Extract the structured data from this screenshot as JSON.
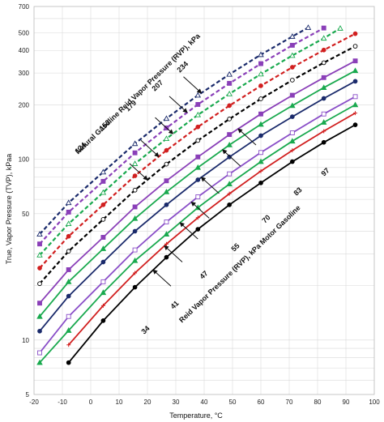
{
  "chart_data": {
    "type": "line",
    "xlabel": "Temperature, °C",
    "ylabel": "True, Vapor Pressure (TVP), kPaa",
    "yscale": "log",
    "xlim": [
      -20,
      100
    ],
    "ylim": [
      5,
      700
    ],
    "xticks": [
      -20,
      -10,
      0,
      10,
      20,
      30,
      40,
      50,
      60,
      70,
      80,
      90,
      100
    ],
    "yticks": [
      5,
      10,
      50,
      100,
      200,
      300,
      400,
      500,
      700
    ],
    "grid": true,
    "groups": [
      {
        "label": "Natural Gasoline Reid Vapor Pressure (RVP), kPa",
        "values": [
          "124",
          "152",
          "179",
          "207",
          "234"
        ]
      },
      {
        "label": "Reid Vapor Pressure (RVP), kPa Motor Gasoline",
        "values": [
          "34",
          "41",
          "47",
          "55",
          "70",
          "83",
          "97"
        ]
      }
    ],
    "series": [
      {
        "rvp": "34",
        "color": "#000000",
        "dash": "solid",
        "marker": "circle-filled",
        "x": [
          -7.8,
          4.4,
          15.6,
          26.7,
          37.8,
          48.9,
          60,
          71.1,
          82.2,
          93.3
        ],
        "y": [
          7.5,
          12.8,
          19.6,
          28.7,
          41,
          56,
          74,
          97,
          124,
          155
        ]
      },
      {
        "rvp": "41",
        "color": "#d11f1f",
        "dash": "solid",
        "marker": "plus",
        "x": [
          -7.8,
          4.4,
          15.6,
          26.7,
          37.8,
          48.9,
          60,
          71.1,
          82.2,
          93.3
        ],
        "y": [
          9.4,
          15.5,
          23.5,
          34,
          47.5,
          64.5,
          86,
          112,
          143,
          180
        ]
      },
      {
        "rvp": "47",
        "color": "#19a94e",
        "dash": "solid",
        "marker": "triangle-filled",
        "x": [
          -18,
          -7.8,
          4.4,
          15.6,
          26.7,
          37.8,
          48.9,
          60,
          71.1,
          82.2,
          93.3
        ],
        "y": [
          7.5,
          11.3,
          18.3,
          27.5,
          38.5,
          54,
          73,
          97,
          126,
          160,
          200
        ]
      },
      {
        "rvp": "55",
        "color": "#8a4fc8",
        "dash": "solid",
        "marker": "square-open",
        "x": [
          -18,
          -7.8,
          4.4,
          15.6,
          26.7,
          37.8,
          48.9,
          60,
          71.1,
          82.2,
          93.3
        ],
        "y": [
          8.5,
          13.5,
          21,
          31.5,
          45,
          62,
          83,
          109,
          140,
          178,
          222
        ]
      },
      {
        "rvp": "70",
        "color": "#1a2a6b",
        "dash": "solid",
        "marker": "circle-filled",
        "x": [
          -18,
          -7.8,
          4.4,
          15.6,
          26.7,
          37.8,
          48.9,
          60,
          71.1,
          82.2,
          93.3
        ],
        "y": [
          11.2,
          17.5,
          27,
          40,
          56,
          77,
          103,
          135,
          172,
          217,
          270
        ]
      },
      {
        "rvp": "83",
        "color": "#19a94e",
        "dash": "solid",
        "marker": "triangle-filled",
        "x": [
          -18,
          -7.8,
          4.4,
          15.6,
          26.7,
          37.8,
          48.9,
          60,
          71.1,
          82.2,
          93.3
        ],
        "y": [
          13.5,
          21,
          32,
          47,
          66,
          90,
          120,
          156,
          198,
          249,
          309
        ]
      },
      {
        "rvp": "97",
        "color": "#8a3fb8",
        "dash": "solid",
        "marker": "square-filled",
        "x": [
          -18,
          -7.8,
          4.4,
          15.6,
          26.7,
          37.8,
          48.9,
          60,
          71.1,
          82.2,
          93.3
        ],
        "y": [
          16,
          24.5,
          37,
          54.5,
          76,
          103,
          137,
          178,
          226,
          283,
          350
        ]
      },
      {
        "rvp": "124",
        "color": "#000000",
        "dash": "dashed",
        "marker": "circle-open",
        "x": [
          -18,
          -7.8,
          4.4,
          15.6,
          26.7,
          37.8,
          48.9,
          60,
          71.1,
          82.2,
          93.3
        ],
        "y": [
          20.5,
          31,
          46.5,
          67.5,
          94,
          127,
          167,
          216,
          274,
          342,
          422
        ]
      },
      {
        "rvp": "152",
        "color": "#d11f1f",
        "dash": "dashed",
        "marker": "circle-filled",
        "x": [
          -18,
          -7.8,
          4.4,
          15.6,
          26.7,
          37.8,
          48.9,
          60,
          71.1,
          82.2,
          93.3
        ],
        "y": [
          25,
          37.5,
          56,
          81,
          112,
          151,
          198,
          255,
          323,
          402,
          495
        ]
      },
      {
        "rvp": "179",
        "color": "#19a94e",
        "dash": "dashed",
        "marker": "triangle-open",
        "x": [
          -18,
          -7.8,
          4.4,
          15.6,
          26.7,
          37.8,
          48.9,
          60,
          71.1,
          82.2,
          88
        ],
        "y": [
          29.5,
          44,
          65.5,
          94.5,
          130,
          176,
          230,
          296,
          375,
          467,
          530
        ]
      },
      {
        "rvp": "207",
        "color": "#8a3fb8",
        "dash": "dashed",
        "marker": "square-filled",
        "x": [
          -18,
          -7.8,
          4.4,
          15.6,
          26.7,
          37.8,
          48.9,
          60,
          71.1,
          82.2
        ],
        "y": [
          34,
          51,
          75.5,
          108.5,
          149,
          201,
          263,
          338,
          427,
          532
        ]
      },
      {
        "rvp": "234",
        "color": "#1a2a6b",
        "dash": "dashed",
        "marker": "triangle-open",
        "x": [
          -18,
          -7.8,
          4.4,
          15.6,
          26.7,
          37.8,
          48.9,
          60,
          71.1,
          76.7
        ],
        "y": [
          38.5,
          57.5,
          85,
          122,
          168,
          226,
          295,
          379,
          478,
          535
        ]
      }
    ]
  }
}
